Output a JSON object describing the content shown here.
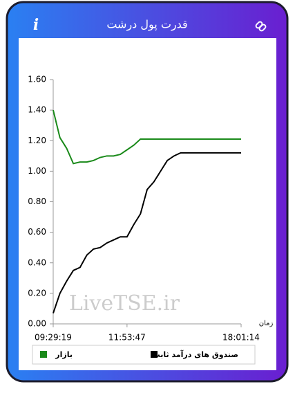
{
  "header": {
    "title": "قدرت پول درشت",
    "info_icon": "i"
  },
  "chart_data": {
    "type": "line",
    "xlabel": "زمان",
    "watermark": "LiveTSE.ir",
    "categories": [
      "09:29:19",
      null,
      null,
      null,
      null,
      null,
      null,
      null,
      null,
      null,
      null,
      "11:53:47",
      null,
      null,
      null,
      null,
      null,
      null,
      null,
      null,
      null,
      null,
      null,
      null,
      null,
      null,
      null,
      null,
      "18:01:14"
    ],
    "series": [
      {
        "name": "صندوق های درآمد ثابت",
        "color": "#000000",
        "values": [
          0.07,
          0.2,
          0.28,
          0.35,
          0.37,
          0.45,
          0.49,
          0.5,
          0.53,
          0.55,
          0.57,
          0.57,
          0.65,
          0.72,
          0.88,
          0.93,
          1.0,
          1.07,
          1.1,
          1.12,
          1.12,
          1.12,
          1.12,
          1.12,
          1.12,
          1.12,
          1.12,
          1.12,
          1.12
        ]
      },
      {
        "name": "بازار",
        "color": "#1a8a1a",
        "values": [
          1.4,
          1.22,
          1.15,
          1.05,
          1.06,
          1.06,
          1.07,
          1.09,
          1.1,
          1.1,
          1.11,
          1.14,
          1.17,
          1.21,
          1.21,
          1.21,
          1.21,
          1.21,
          1.21,
          1.21,
          1.21,
          1.21,
          1.21,
          1.21,
          1.21,
          1.21,
          1.21,
          1.21,
          1.21
        ]
      }
    ],
    "ylim": [
      0,
      1.6
    ],
    "yticks": [
      {
        "value": 0,
        "label": "0.00"
      },
      {
        "value": 0.2,
        "label": "0.20"
      },
      {
        "value": 0.4,
        "label": "0.40"
      },
      {
        "value": 0.6,
        "label": "0.60"
      },
      {
        "value": 0.8,
        "label": "0.80"
      },
      {
        "value": 1,
        "label": "1.00"
      },
      {
        "value": 1.2,
        "label": "1.20"
      },
      {
        "value": 1.4,
        "label": "1.40"
      },
      {
        "value": 1.6,
        "label": "1.60"
      }
    ],
    "grid": false,
    "legend": "bottom"
  }
}
